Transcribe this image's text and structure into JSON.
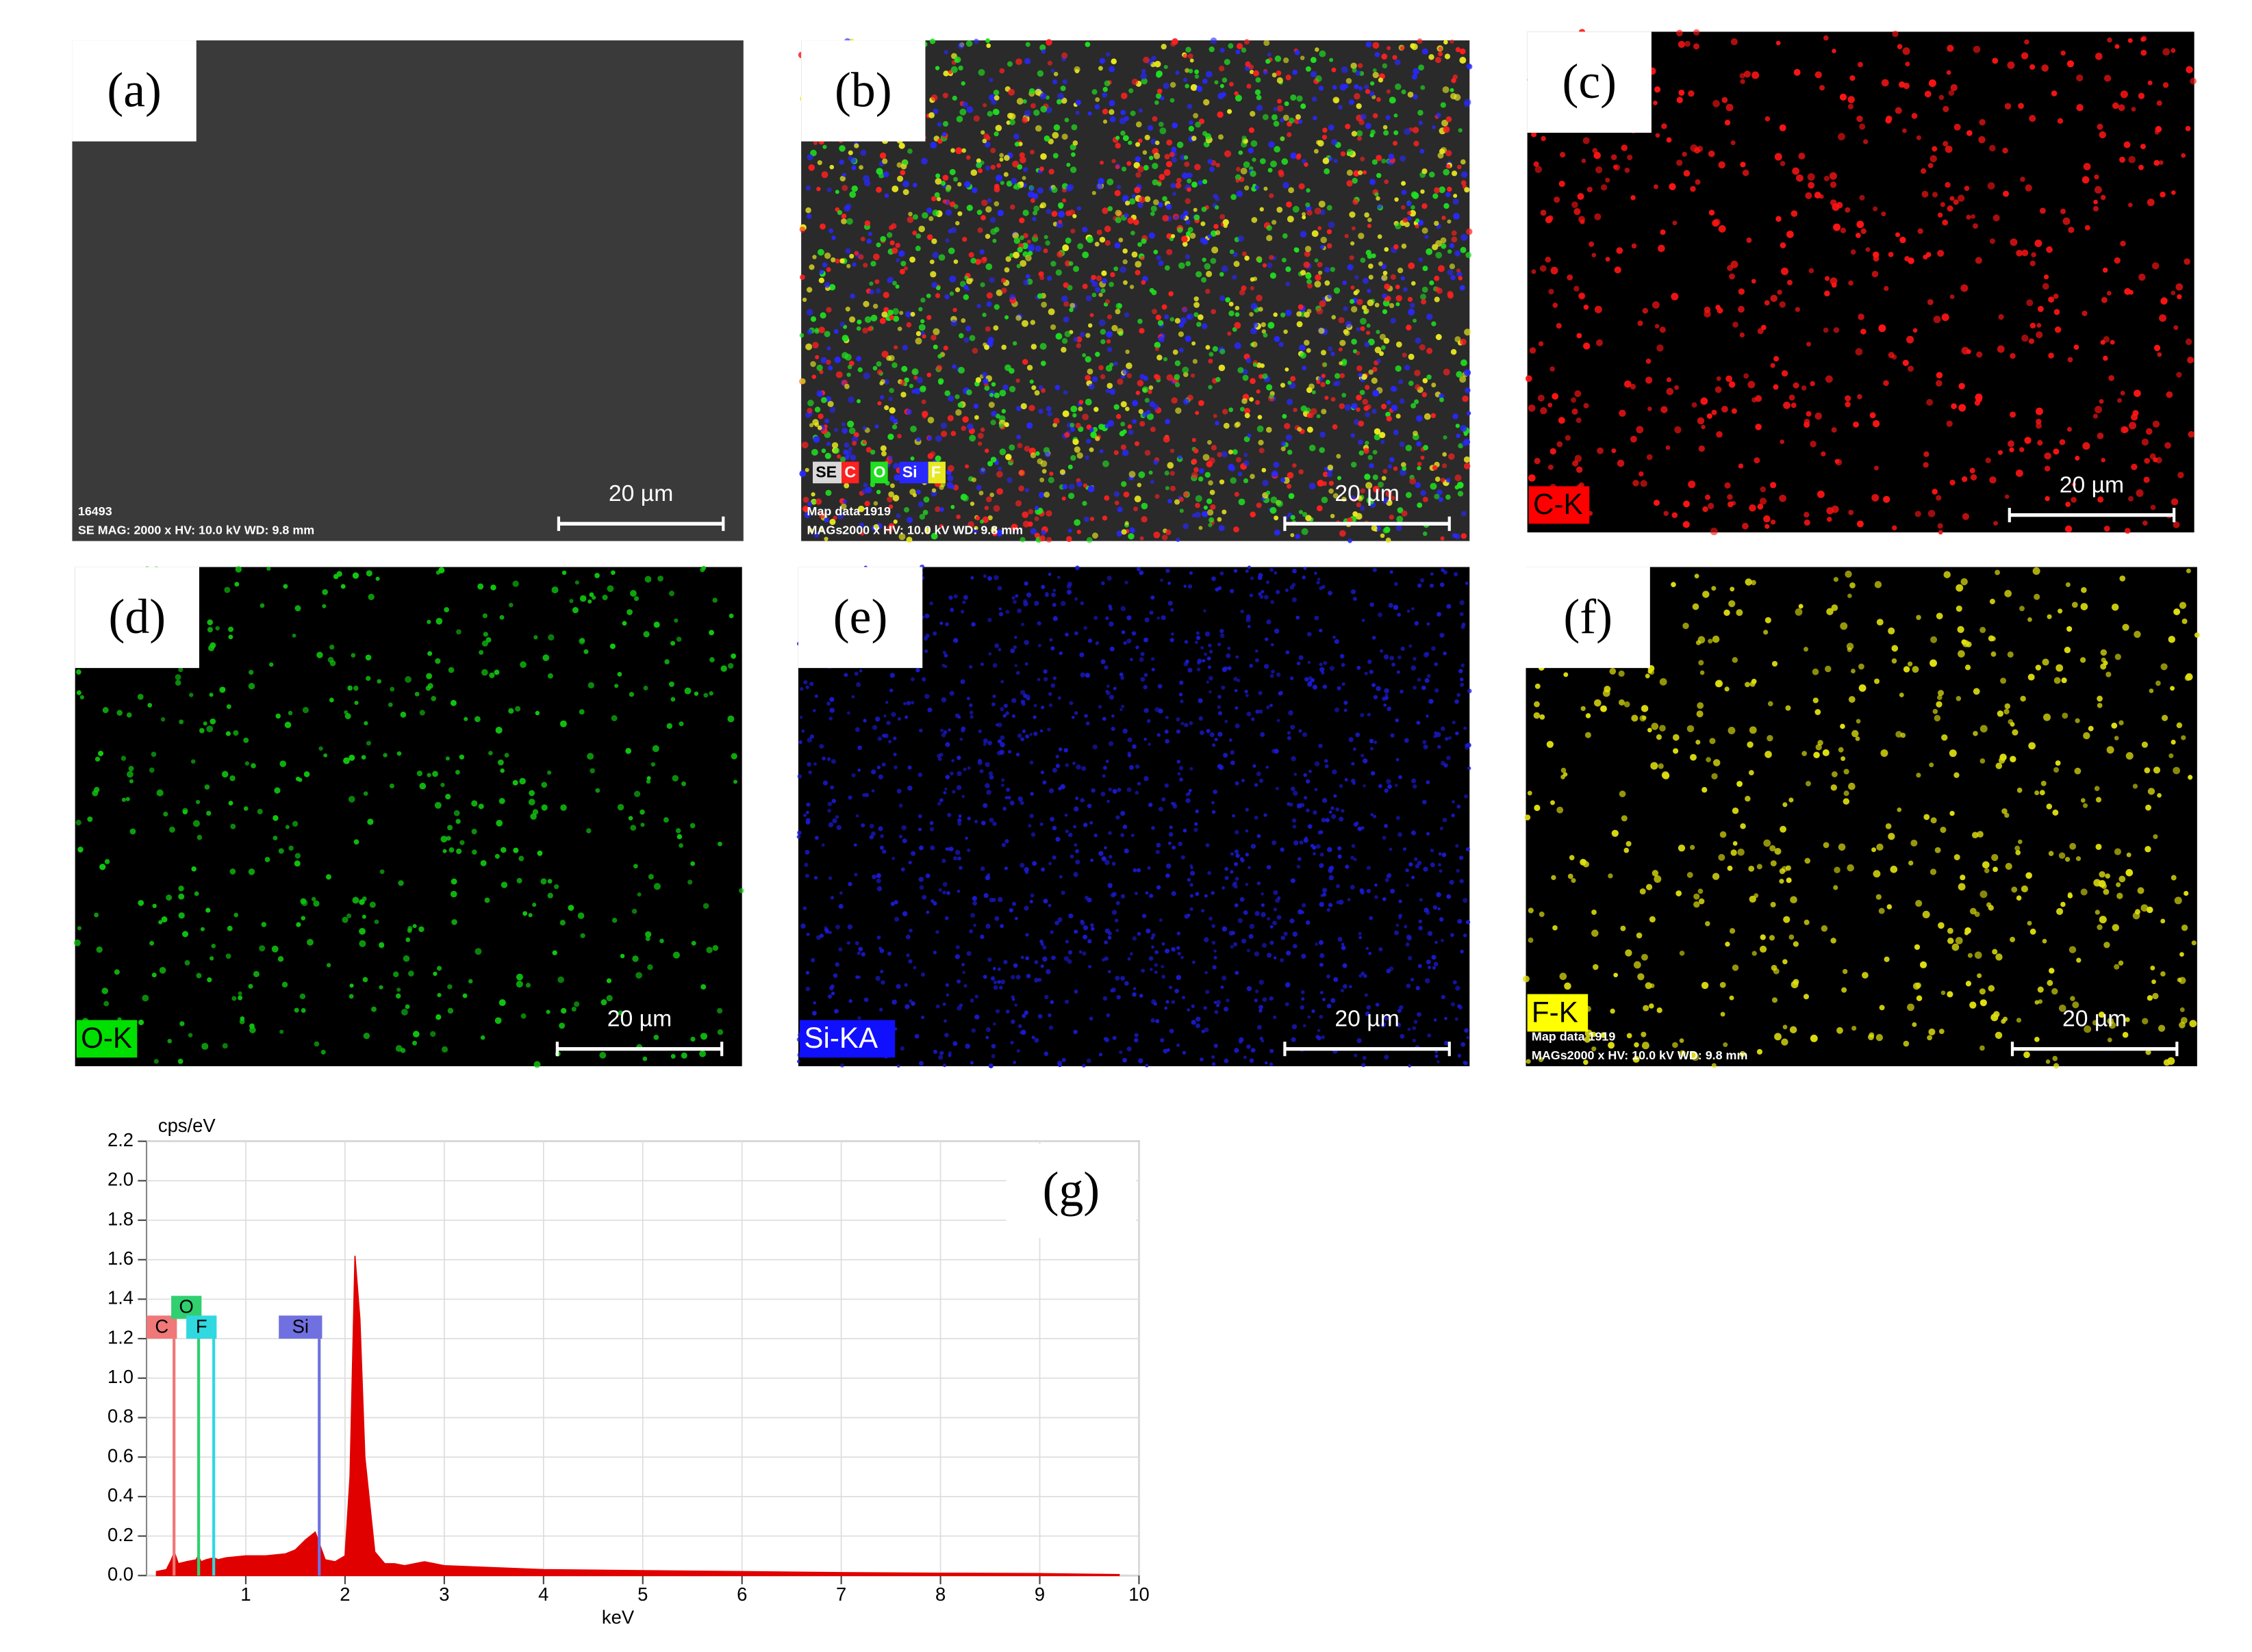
{
  "panels": [
    {
      "label": "(a)",
      "background": "#3a3a3a",
      "scale_bar": "20 µm",
      "info": [
        "16493",
        "SE  MAG: 2000 x  HV: 10.0 kV  WD: 9.8 mm"
      ],
      "dots": []
    },
    {
      "label": "(b)",
      "background": "#2a2a2a",
      "scale_bar": "20 µm",
      "info": [
        "Map data 1919",
        "MAGs2000 x  HV: 10.0 kV  WD: 9.8 mm"
      ],
      "legend": [
        {
          "text": "SE",
          "color": "#d8d8d8"
        },
        {
          "text": "C",
          "color": "#ff2020"
        },
        {
          "text": "O",
          "color": "#20e020"
        },
        {
          "text": "Si",
          "color": "#2828ff"
        },
        {
          "text": "F",
          "color": "#e8e820"
        }
      ],
      "dots": [
        "#ff2020",
        "#20e020",
        "#2828ff",
        "#e8e820"
      ]
    },
    {
      "label": "(c)",
      "background": "#000000",
      "scale_bar": "20 µm",
      "tag": {
        "text": "C-K",
        "color": "#ff0000"
      },
      "dots": [
        "#ff1414"
      ]
    },
    {
      "label": "(d)",
      "background": "#000000",
      "scale_bar": "20 µm",
      "tag": {
        "text": "O-K",
        "color": "#00e000"
      },
      "dots": [
        "#10c810"
      ]
    },
    {
      "label": "(e)",
      "background": "#000000",
      "scale_bar": "20 µm",
      "tag": {
        "text": "Si-KA",
        "color": "#1010ff"
      },
      "dots": [
        "#1a1ad0"
      ]
    },
    {
      "label": "(f)",
      "background": "#000000",
      "scale_bar": "20 µm",
      "tag": {
        "text": "F-K",
        "color": "#ffff00"
      },
      "info": [
        "Map data 1919",
        "MAGs2000 x  HV: 10.0 kV  WD: 9.8 mm"
      ],
      "dots": [
        "#e0e010"
      ]
    }
  ],
  "chart_data": {
    "type": "area",
    "annotation": "(g)",
    "xlabel": "keV",
    "ylabel": "cps/eV",
    "color": "#e00000",
    "grid": true,
    "x": [
      0.1,
      0.2,
      0.25,
      0.28,
      0.32,
      0.4,
      0.5,
      0.52,
      0.55,
      0.6,
      0.68,
      0.72,
      0.8,
      1.0,
      1.2,
      1.4,
      1.5,
      1.6,
      1.7,
      1.75,
      1.8,
      1.9,
      2.0,
      2.05,
      2.1,
      2.15,
      2.2,
      2.3,
      2.4,
      2.5,
      2.6,
      2.8,
      3.0,
      3.5,
      4.0,
      5.0,
      6.0,
      7.0,
      8.0,
      9.0,
      9.8
    ],
    "values": [
      0.02,
      0.03,
      0.08,
      0.12,
      0.06,
      0.07,
      0.08,
      0.1,
      0.07,
      0.08,
      0.09,
      0.08,
      0.09,
      0.1,
      0.1,
      0.11,
      0.13,
      0.18,
      0.22,
      0.15,
      0.08,
      0.07,
      0.1,
      0.5,
      1.62,
      1.3,
      0.6,
      0.12,
      0.06,
      0.06,
      0.05,
      0.07,
      0.05,
      0.04,
      0.03,
      0.025,
      0.02,
      0.015,
      0.012,
      0.01,
      0.005
    ],
    "markers": [
      {
        "label": "C",
        "x": 0.277,
        "height": 1.2,
        "color": "#f07878"
      },
      {
        "label": "O",
        "x": 0.525,
        "height": 1.3,
        "color": "#30d070"
      },
      {
        "label": "F",
        "x": 0.677,
        "height": 1.2,
        "color": "#30d8e0"
      },
      {
        "label": "Si",
        "x": 1.74,
        "height": 1.2,
        "color": "#7070e0"
      }
    ],
    "xlim": [
      0,
      10
    ],
    "ylim": [
      0,
      2.2
    ],
    "xticks": [
      1,
      2,
      3,
      4,
      5,
      6,
      7,
      8,
      9,
      10
    ],
    "yticks": [
      {
        "value": 0,
        "label": "0.0"
      },
      0.2,
      0.4,
      0.6,
      0.8,
      {
        "value": 1,
        "label": "1.0"
      },
      1.2,
      1.4,
      1.6,
      1.8,
      {
        "value": 2,
        "label": "2.0"
      },
      2.2
    ]
  }
}
